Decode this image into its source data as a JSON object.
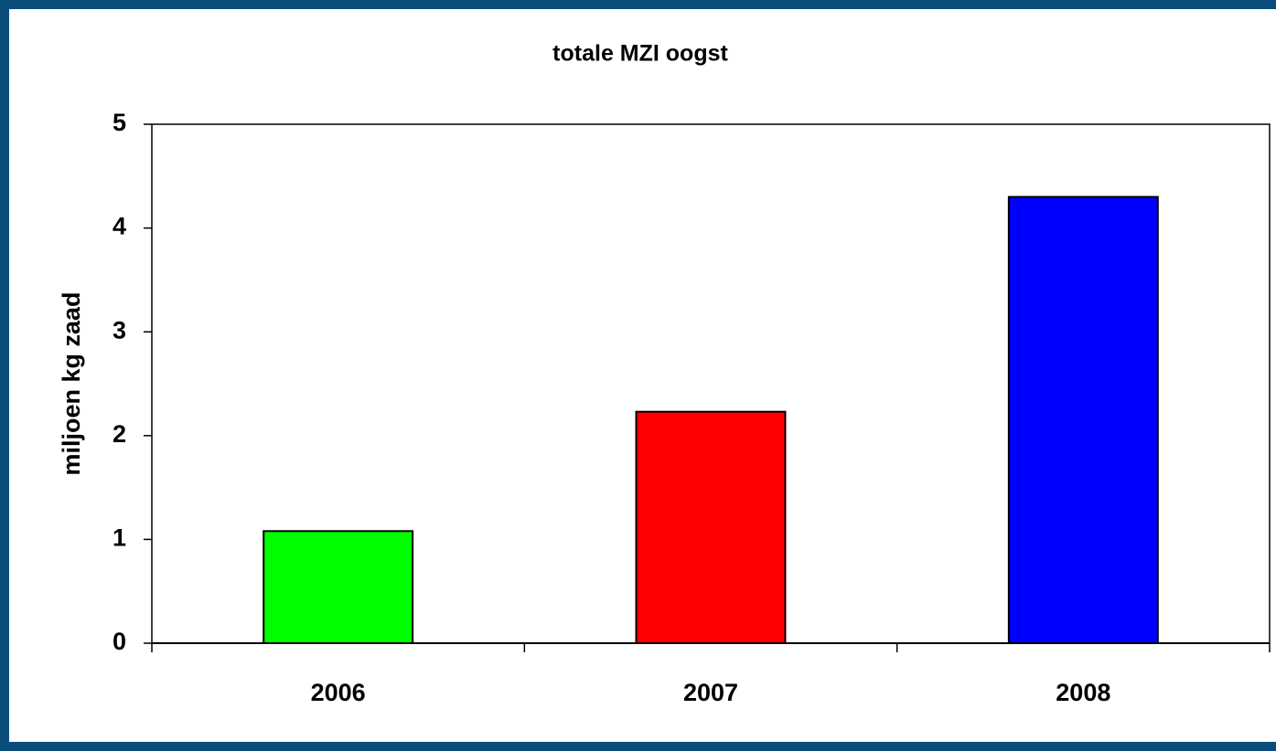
{
  "chart_data": {
    "type": "bar",
    "title": "totale MZI oogst",
    "y_label": "miljoen kg zaad",
    "categories": [
      "2006",
      "2007",
      "2008"
    ],
    "values": [
      1.08,
      2.23,
      4.3
    ],
    "colors": [
      "#00ff00",
      "#ff0000",
      "#0000ff"
    ],
    "ylim": [
      0,
      5
    ],
    "yticks": [
      0,
      1,
      2,
      3,
      4,
      5
    ],
    "grid": false
  }
}
